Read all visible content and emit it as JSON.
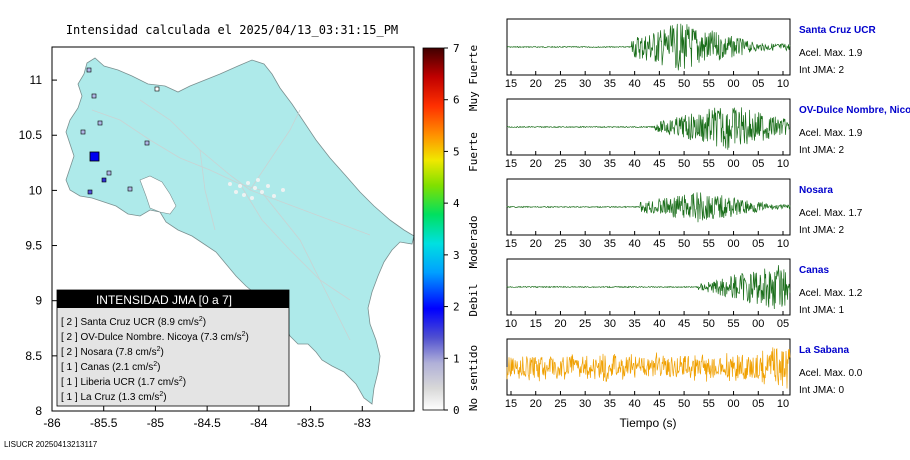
{
  "map": {
    "title": "Intensidad calculada el 2025/04/13_03:31:15_PM",
    "x_ticks": [
      "-86",
      "-85.5",
      "-85",
      "-84.5",
      "-84",
      "-83.5",
      "-83"
    ],
    "y_ticks": [
      "11",
      "10.5",
      "10",
      "9.5",
      "9",
      "8.5",
      "8"
    ],
    "xlim": [
      -86,
      -82.5
    ],
    "ylim": [
      8,
      11.3
    ],
    "footer": "LISUCR 20250413213117",
    "colorbar": {
      "ticks": [
        "0",
        "1",
        "2",
        "3",
        "4",
        "5",
        "6",
        "7"
      ],
      "labels": [
        "No sentido",
        "Debil",
        "Moderado",
        "Fuerte",
        "Muy Fuerte"
      ]
    },
    "legend": {
      "title": "INTENSIDAD JMA [0 a 7]",
      "unit_sup": "2",
      "entries": [
        {
          "jma": "[ 2 ]",
          "label": "Santa Cruz UCR (8.9 cm/s",
          "tail": ")"
        },
        {
          "jma": "[ 2 ]",
          "label": "OV-Dulce Nombre. Nicoya (7.3 cm/s",
          "tail": ")"
        },
        {
          "jma": "[ 2 ]",
          "label": "Nosara (7.8 cm/s",
          "tail": ")"
        },
        {
          "jma": "[ 1 ]",
          "label": "Canas (2.1 cm/s",
          "tail": ")"
        },
        {
          "jma": "[ 1 ]",
          "label": "Liberia UCR (1.7 cm/s",
          "tail": ")"
        },
        {
          "jma": "[ 1 ]",
          "label": "La Cruz (1.3 cm/s",
          "tail": ")"
        }
      ]
    }
  },
  "waveforms": {
    "xlabel": "Tiempo (s)",
    "traces": [
      {
        "station": "Santa Cruz UCR",
        "accel": "Acel. Max. 1.9",
        "jma": "Int JMA: 2",
        "color": "#1a6e1a",
        "ticks": [
          "15",
          "20",
          "25",
          "30",
          "35",
          "40",
          "45",
          "50",
          "55",
          "00",
          "05",
          "10"
        ]
      },
      {
        "station": "OV-Dulce Nombre, Nico",
        "accel": "Acel. Max. 1.9",
        "jma": "Int JMA: 2",
        "color": "#1a6e1a",
        "ticks": [
          "15",
          "20",
          "25",
          "30",
          "35",
          "40",
          "45",
          "50",
          "55",
          "00",
          "05",
          "10"
        ]
      },
      {
        "station": "Nosara",
        "accel": "Acel. Max. 1.7",
        "jma": "Int JMA: 2",
        "color": "#1a6e1a",
        "ticks": [
          "15",
          "20",
          "25",
          "30",
          "35",
          "40",
          "45",
          "50",
          "55",
          "00",
          "05",
          "10"
        ]
      },
      {
        "station": "Canas",
        "accel": "Acel. Max. 1.2",
        "jma": "Int JMA: 1",
        "color": "#1a6e1a",
        "ticks": [
          "10",
          "15",
          "20",
          "25",
          "30",
          "35",
          "40",
          "45",
          "50",
          "55",
          "00",
          "05"
        ]
      },
      {
        "station": "La Sabana",
        "accel": "Acel. Max. 0.0",
        "jma": "Int JMA: 0",
        "color": "#f0a000",
        "ticks": [
          "15",
          "20",
          "25",
          "30",
          "35",
          "40",
          "45",
          "50",
          "55",
          "00",
          "05",
          "10"
        ]
      }
    ]
  }
}
